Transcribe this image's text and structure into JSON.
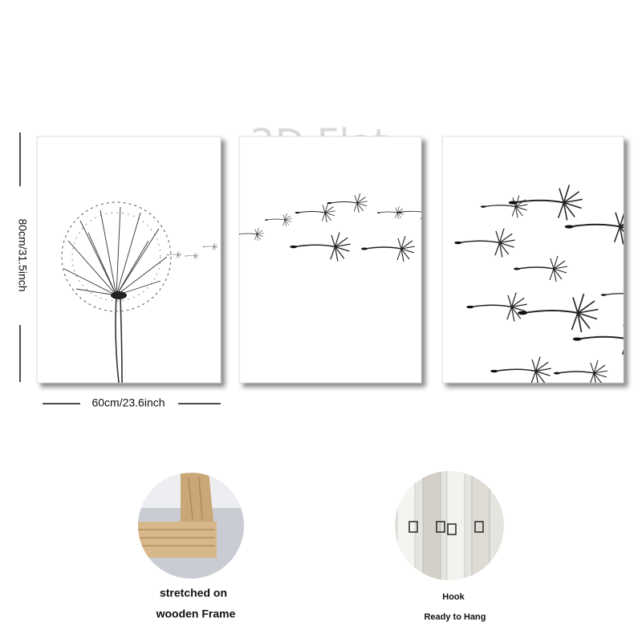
{
  "watermark": "2D Flat",
  "dimensions": {
    "height": "80cm/31.5inch",
    "width": "60cm/23.6inch"
  },
  "features": [
    {
      "lines": [
        "stretched on",
        "wooden Frame"
      ]
    },
    {
      "lines": [
        "Hook",
        "Ready to Hang"
      ]
    }
  ]
}
